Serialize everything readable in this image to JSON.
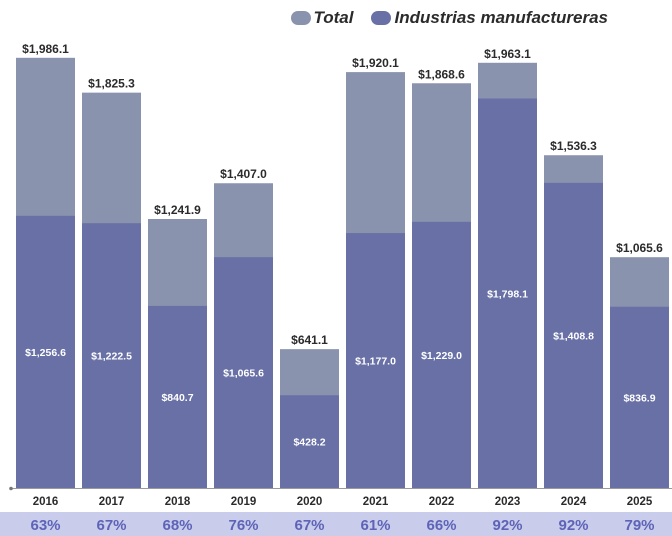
{
  "chart_data": {
    "type": "bar",
    "categories": [
      "2016",
      "2017",
      "2018",
      "2019",
      "2020",
      "2021",
      "2022",
      "2023",
      "2024",
      "2025"
    ],
    "series": [
      {
        "name": "Total",
        "values": [
          1986.1,
          1825.3,
          1241.9,
          1407.0,
          641.1,
          1920.1,
          1868.6,
          1963.1,
          1536.3,
          1065.6
        ],
        "labels": [
          "$1,986.1",
          "$1,825.3",
          "$1,241.9",
          "$1,407.0",
          "$641.1",
          "$1,920.1",
          "$1,868.6",
          "$1,963.1",
          "$1,536.3",
          "$1,065.6"
        ],
        "color": "#8a93ad"
      },
      {
        "name": "Industrias manufactureras",
        "values": [
          1256.6,
          1222.5,
          840.7,
          1065.6,
          428.2,
          1177.0,
          1229.0,
          1798.1,
          1408.8,
          836.9
        ],
        "labels": [
          "$1,256.6",
          "$1,222.5",
          "$840.7",
          "$1,065.6",
          "$428.2",
          "$1,177.0",
          "$1,229.0",
          "$1,798.1",
          "$1,408.8",
          "$836.9"
        ],
        "color": "#6870a6"
      }
    ],
    "shares": [
      "63%",
      "67%",
      "68%",
      "76%",
      "67%",
      "61%",
      "66%",
      "92%",
      "92%",
      "79%"
    ],
    "ylim": [
      0,
      2100
    ],
    "grid": false,
    "legend": "top-right",
    "colors": {
      "share_text": "#5d64b8",
      "share_band": "#c9ccea",
      "label_dark": "#2b2b2b",
      "label_light": "#ffffff"
    }
  }
}
